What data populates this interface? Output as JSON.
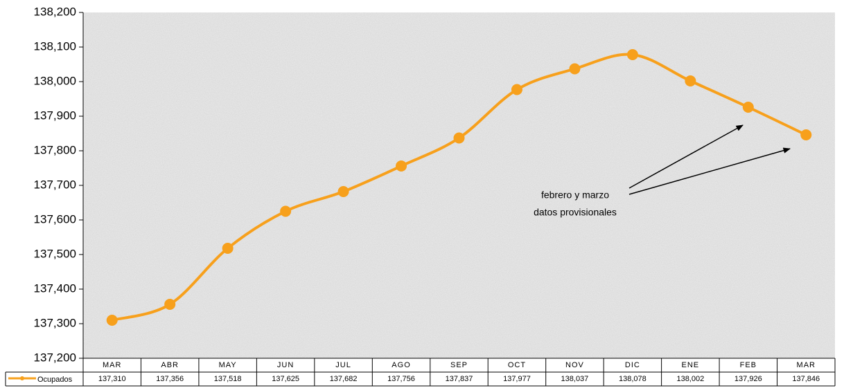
{
  "chart_data": {
    "type": "line",
    "categories": [
      "MAR",
      "ABR",
      "MAY",
      "JUN",
      "JUL",
      "AGO",
      "SEP",
      "OCT",
      "NOV",
      "DIC",
      "ENE",
      "FEB",
      "MAR"
    ],
    "series": [
      {
        "name": "Ocupados",
        "color": "#f7a01c",
        "values": [
          137310,
          137356,
          137518,
          137625,
          137682,
          137756,
          137837,
          137977,
          138037,
          138078,
          138002,
          137926,
          137846
        ],
        "value_labels": [
          "137,310",
          "137,356",
          "137,518",
          "137,625",
          "137,682",
          "137,756",
          "137,837",
          "137,977",
          "138,037",
          "138,078",
          "138,002",
          "137,926",
          "137,846"
        ]
      }
    ],
    "ylim": [
      137200,
      138200
    ],
    "yticks": [
      {
        "value": 137200,
        "label": "137,200"
      },
      {
        "value": 137300,
        "label": "137,300"
      },
      {
        "value": 137400,
        "label": "137,400"
      },
      {
        "value": 137500,
        "label": "137,500"
      },
      {
        "value": 137600,
        "label": "137,600"
      },
      {
        "value": 137700,
        "label": "137,700"
      },
      {
        "value": 137800,
        "label": "137,800"
      },
      {
        "value": 137900,
        "label": "137,900"
      },
      {
        "value": 138000,
        "label": "138,000"
      },
      {
        "value": 138100,
        "label": "138,100"
      },
      {
        "value": 138200,
        "label": "138,200"
      }
    ],
    "annotations": [
      "febrero y marzo",
      "datos provisionales"
    ]
  }
}
